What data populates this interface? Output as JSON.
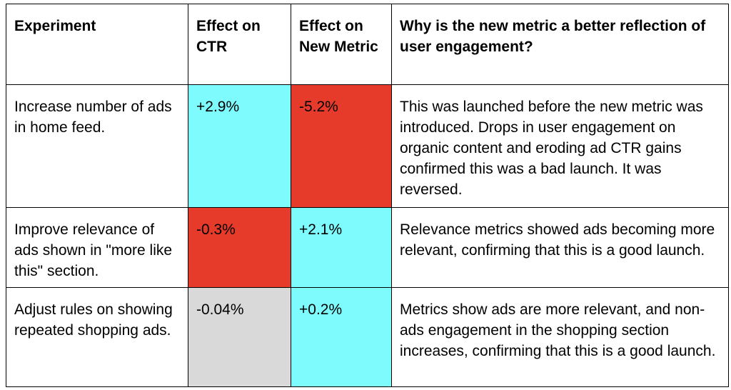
{
  "table": {
    "headers": [
      "Experiment",
      "Effect on CTR",
      "Effect on New Metric",
      "Why is the new metric a better reflection of user engagement?"
    ],
    "rows": [
      {
        "experiment": "Increase number of ads in home feed.",
        "ctr_effect": "+2.9%",
        "ctr_color": "#7dfbfd",
        "new_metric_effect": "-5.2%",
        "new_metric_color": "#e63b2a",
        "why": "This was launched before the new metric was introduced. Drops in user engagement on organic content and eroding ad CTR gains confirmed this was a bad launch. It was reversed."
      },
      {
        "experiment": "Improve relevance of ads shown in \"more like this\" section.",
        "ctr_effect": "-0.3%",
        "ctr_color": "#e63b2a",
        "new_metric_effect": "+2.1%",
        "new_metric_color": "#7dfbfd",
        "why": "Relevance metrics showed ads becoming more relevant, confirming that this is a good launch."
      },
      {
        "experiment": "Adjust rules on showing repeated shopping ads.",
        "ctr_effect": "-0.04%",
        "ctr_color": "#d9d9d9",
        "new_metric_effect": "+0.2%",
        "new_metric_color": "#7dfbfd",
        "why": "Metrics show ads are more relevant, and non-ads engagement in the shopping section increases, confirming that this is a good launch."
      }
    ]
  }
}
